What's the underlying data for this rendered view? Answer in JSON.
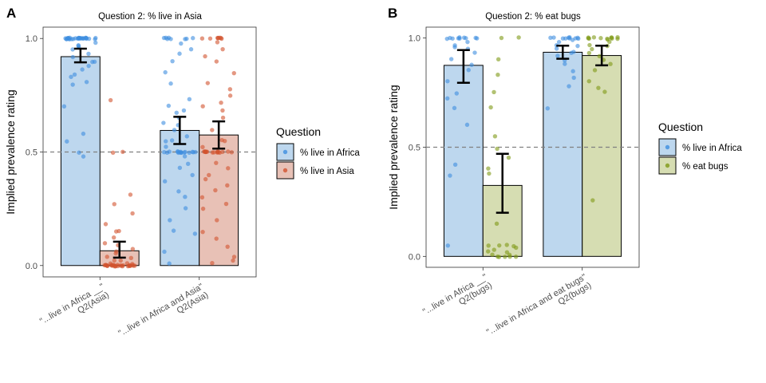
{
  "colors": {
    "africa_fill": "#bdd7ee",
    "africa_point": "#3d8ee0",
    "asia_fill": "#e8c1b6",
    "asia_point": "#d2532f",
    "bugs_fill": "#d6ddb2",
    "bugs_point": "#7f9a16",
    "bar_outline": "#000000",
    "reference_line": "#808080"
  },
  "chart_data": [
    {
      "panel_label": "A",
      "type": "bar",
      "title": "Question 2: % live in Asia",
      "xlabel": "",
      "ylabel": "Implied prevalence rating",
      "ylim": [
        -0.05,
        1.05
      ],
      "yticks": [
        0.0,
        0.5,
        1.0
      ],
      "ytick_labels": [
        "0.0",
        "0.5",
        "1.0"
      ],
      "reference_line": 0.5,
      "grid": false,
      "categories": [
        [
          "\"...live in Africa __\"",
          "Q2(Asia)"
        ],
        [
          "\"...live in Africa and Asia\"",
          "Q2(Asia)"
        ]
      ],
      "legend": {
        "title": "Question",
        "position": "right",
        "items": [
          {
            "label": "% live in Africa",
            "color_key": "africa"
          },
          {
            "label": "% live in Asia",
            "color_key": "asia"
          }
        ]
      },
      "series": [
        {
          "name": "% live in Africa",
          "color_key": "africa",
          "values": [
            0.92,
            0.595
          ],
          "ci_low": [
            0.895,
            0.535
          ],
          "ci_high": [
            0.955,
            0.655
          ],
          "points": [
            [
              1.0,
              1.0,
              1.0,
              1.0,
              1.0,
              1.0,
              1.0,
              1.0,
              1.0,
              1.0,
              1.0,
              1.0,
              1.0,
              1.0,
              1.0,
              1.0,
              1.0,
              1.0,
              1.0,
              1.0,
              1.0,
              1.0,
              1.0,
              1.0,
              1.0,
              1.0,
              1.0,
              1.0,
              1.0,
              1.0,
              0.98,
              0.97,
              0.97,
              0.96,
              0.95,
              0.93,
              0.92,
              0.9,
              0.9,
              0.88,
              0.86,
              0.84,
              0.83,
              0.81,
              0.8,
              0.7,
              0.58,
              0.55,
              0.5,
              0.48
            ],
            [
              1.0,
              1.0,
              1.0,
              1.0,
              1.0,
              1.0,
              1.0,
              1.0,
              0.98,
              0.95,
              0.93,
              0.9,
              0.85,
              0.8,
              0.73,
              0.7,
              0.68,
              0.67,
              0.65,
              0.63,
              0.62,
              0.6,
              0.57,
              0.55,
              0.55,
              0.52,
              0.5,
              0.5,
              0.5,
              0.5,
              0.5,
              0.5,
              0.5,
              0.5,
              0.5,
              0.5,
              0.5,
              0.5,
              0.5,
              0.5,
              0.5,
              0.5,
              0.48,
              0.45,
              0.43,
              0.4,
              0.37,
              0.33,
              0.3,
              0.25,
              0.2,
              0.15,
              0.14,
              0.06,
              0.01
            ]
          ]
        },
        {
          "name": "% live in Asia",
          "color_key": "asia",
          "values": [
            0.065,
            0.575
          ],
          "ci_low": [
            0.035,
            0.515
          ],
          "ci_high": [
            0.105,
            0.635
          ],
          "points": [
            [
              0.73,
              0.5,
              0.5,
              0.31,
              0.27,
              0.23,
              0.18,
              0.15,
              0.15,
              0.12,
              0.1,
              0.09,
              0.07,
              0.06,
              0.05,
              0.04,
              0.03,
              0.02,
              0.02,
              0.01,
              0.01,
              0.01,
              0.0,
              0.0,
              0.0,
              0.0,
              0.0,
              0.0,
              0.0,
              0.0,
              0.0,
              0.0,
              0.0,
              0.0,
              0.0,
              0.0,
              0.0,
              0.0,
              0.0,
              0.0,
              0.0,
              0.0,
              0.0,
              0.0,
              0.0,
              0.0,
              0.0,
              0.0,
              0.0,
              0.0
            ],
            [
              1.0,
              1.0,
              1.0,
              1.0,
              1.0,
              1.0,
              1.0,
              1.0,
              0.98,
              0.95,
              0.92,
              0.9,
              0.85,
              0.8,
              0.78,
              0.75,
              0.72,
              0.7,
              0.68,
              0.65,
              0.6,
              0.55,
              0.55,
              0.52,
              0.5,
              0.5,
              0.5,
              0.5,
              0.5,
              0.5,
              0.5,
              0.5,
              0.5,
              0.5,
              0.5,
              0.5,
              0.5,
              0.5,
              0.5,
              0.5,
              0.5,
              0.5,
              0.45,
              0.43,
              0.4,
              0.38,
              0.35,
              0.33,
              0.3,
              0.27,
              0.25,
              0.2,
              0.15,
              0.12,
              0.08,
              0.04,
              0.02,
              0.01
            ]
          ]
        }
      ]
    },
    {
      "panel_label": "B",
      "type": "bar",
      "title": "Question 2: % eat bugs",
      "xlabel": "",
      "ylabel": "Implied prevalence rating",
      "ylim": [
        -0.05,
        1.05
      ],
      "yticks": [
        0.0,
        0.5,
        1.0
      ],
      "ytick_labels": [
        "0.0",
        "0.5",
        "1.0"
      ],
      "reference_line": 0.5,
      "grid": false,
      "categories": [
        [
          "\"...live in Africa __\"",
          "Q2(bugs)"
        ],
        [
          "\"...live in Africa and eat bugs\"",
          "Q2(bugs)"
        ]
      ],
      "legend": {
        "title": "Question",
        "position": "right",
        "items": [
          {
            "label": "% live in Africa",
            "color_key": "africa"
          },
          {
            "label": "% eat bugs",
            "color_key": "bugs"
          }
        ]
      },
      "series": [
        {
          "name": "% live in Africa",
          "color_key": "africa",
          "values": [
            0.875,
            0.935
          ],
          "ci_low": [
            0.795,
            0.905
          ],
          "ci_high": [
            0.945,
            0.965
          ],
          "points": [
            [
              1.0,
              1.0,
              1.0,
              1.0,
              1.0,
              1.0,
              1.0,
              1.0,
              1.0,
              1.0,
              0.98,
              0.97,
              0.96,
              0.95,
              0.93,
              0.9,
              0.88,
              0.85,
              0.8,
              0.75,
              0.72,
              0.68,
              0.6,
              0.42,
              0.37,
              0.05
            ],
            [
              1.0,
              1.0,
              1.0,
              1.0,
              1.0,
              1.0,
              1.0,
              1.0,
              1.0,
              1.0,
              0.99,
              0.98,
              0.97,
              0.96,
              0.95,
              0.94,
              0.93,
              0.92,
              0.9,
              0.88,
              0.85,
              0.82,
              0.78,
              0.68
            ]
          ]
        },
        {
          "name": "% eat bugs",
          "color_key": "bugs",
          "values": [
            0.325,
            0.92
          ],
          "ci_low": [
            0.2,
            0.875
          ],
          "ci_high": [
            0.47,
            0.965
          ],
          "points": [
            [
              1.0,
              1.0,
              0.9,
              0.83,
              0.75,
              0.68,
              0.55,
              0.49,
              0.45,
              0.4,
              0.38,
              0.15,
              0.05,
              0.05,
              0.05,
              0.05,
              0.04,
              0.03,
              0.02,
              0.02,
              0.01,
              0.01,
              0.0,
              0.0,
              0.0,
              0.0,
              0.0
            ],
            [
              1.0,
              1.0,
              1.0,
              1.0,
              1.0,
              1.0,
              1.0,
              1.0,
              1.0,
              1.0,
              1.0,
              0.99,
              0.98,
              0.97,
              0.96,
              0.95,
              0.93,
              0.92,
              0.9,
              0.88,
              0.85,
              0.8,
              0.77,
              0.75,
              0.26
            ]
          ]
        }
      ]
    }
  ]
}
